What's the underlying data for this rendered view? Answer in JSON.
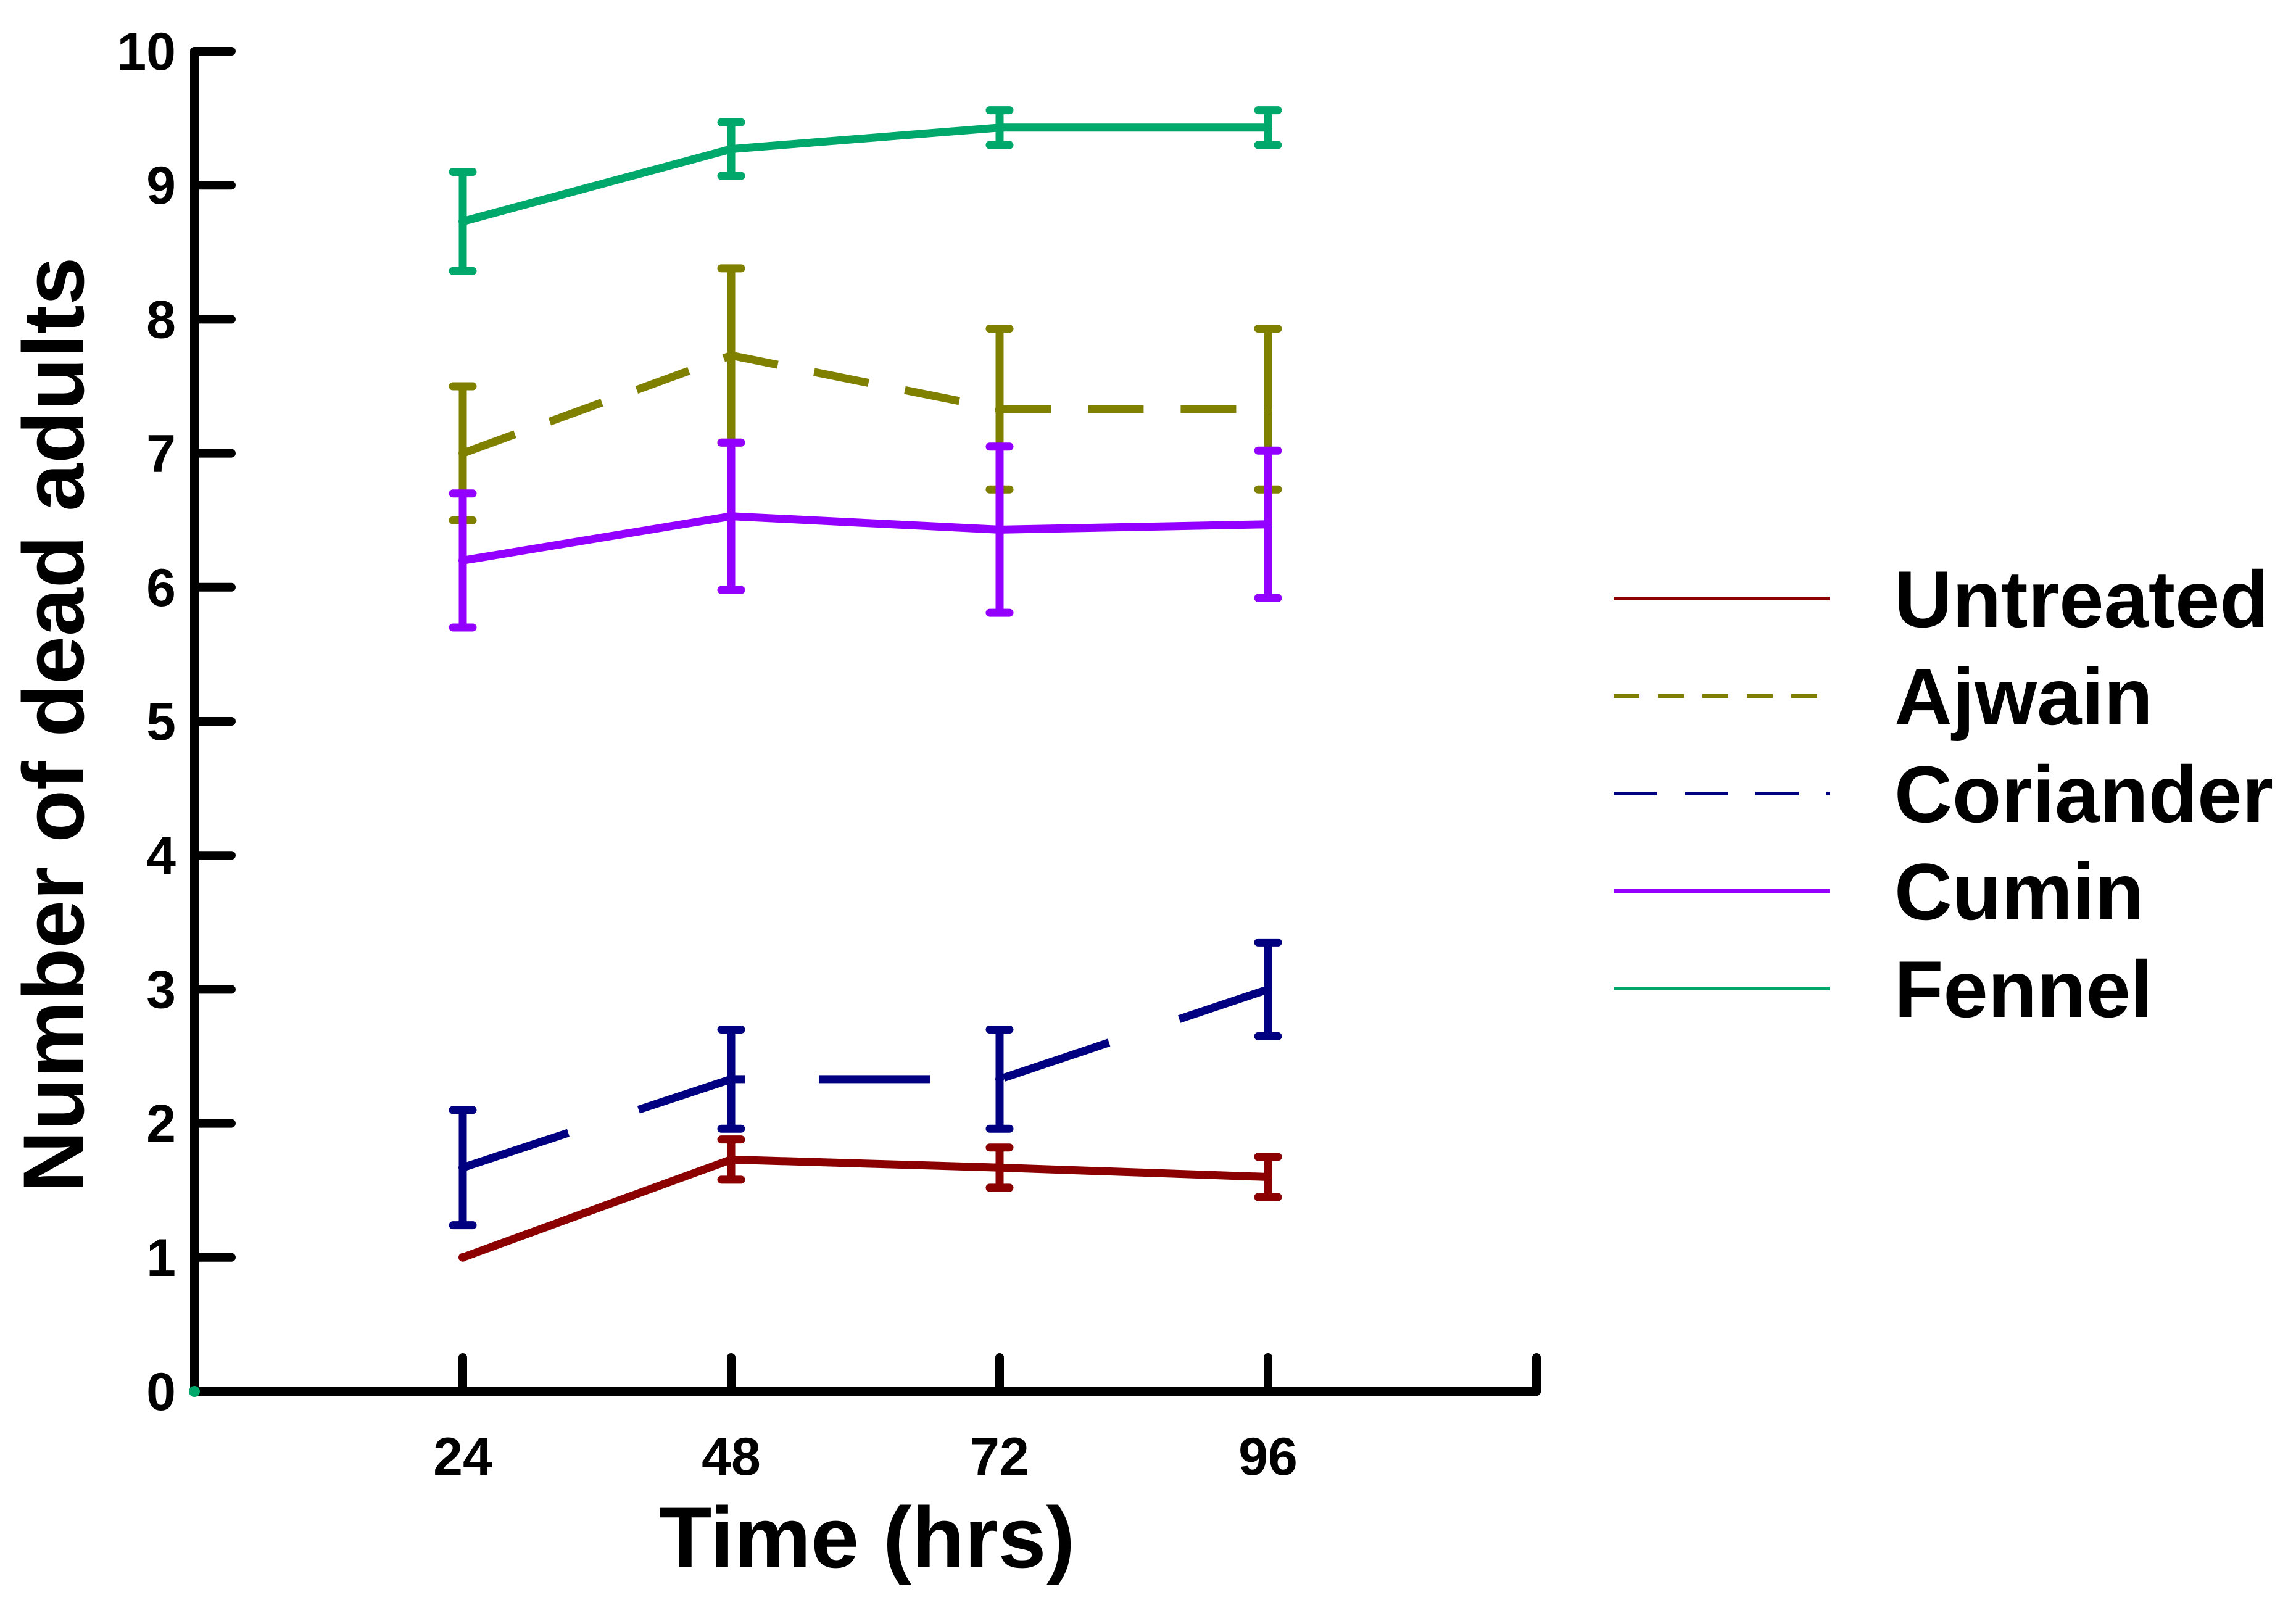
{
  "chart_data": {
    "type": "line",
    "title": "",
    "xlabel": "Time (hrs)",
    "ylabel": "Number of dead adults",
    "x": [
      24,
      48,
      72,
      96
    ],
    "xticks": [
      "24",
      "48",
      "72",
      "96"
    ],
    "yticks": [
      "0",
      "1",
      "2",
      "3",
      "4",
      "5",
      "6",
      "7",
      "8",
      "9",
      "10"
    ],
    "xlim": [
      0,
      120
    ],
    "ylim": [
      0,
      10
    ],
    "legend_position": "right",
    "series": [
      {
        "name": "Untreated",
        "color": "#8B0000",
        "dash": "solid",
        "values": [
          1.0,
          1.73,
          1.67,
          1.6
        ],
        "errors": [
          0.0,
          0.15,
          0.15,
          0.15
        ]
      },
      {
        "name": "Ajwain",
        "color": "#808000",
        "dash": "dash",
        "values": [
          7.0,
          7.73,
          7.33,
          7.33
        ],
        "errors": [
          0.5,
          0.65,
          0.6,
          0.6
        ]
      },
      {
        "name": "Coriander",
        "color": "#000080",
        "dash": "longdash",
        "values": [
          1.67,
          2.33,
          2.33,
          3.0
        ],
        "errors": [
          0.43,
          0.37,
          0.37,
          0.35
        ]
      },
      {
        "name": "Cumin",
        "color": "#9400FF",
        "dash": "solid",
        "values": [
          6.2,
          6.53,
          6.43,
          6.47
        ],
        "errors": [
          0.5,
          0.55,
          0.62,
          0.55
        ]
      },
      {
        "name": "Fennel",
        "color": "#00A86B",
        "dash": "solid",
        "values": [
          8.73,
          9.27,
          9.43,
          9.43
        ],
        "errors": [
          0.37,
          0.2,
          0.13,
          0.13
        ]
      }
    ]
  }
}
